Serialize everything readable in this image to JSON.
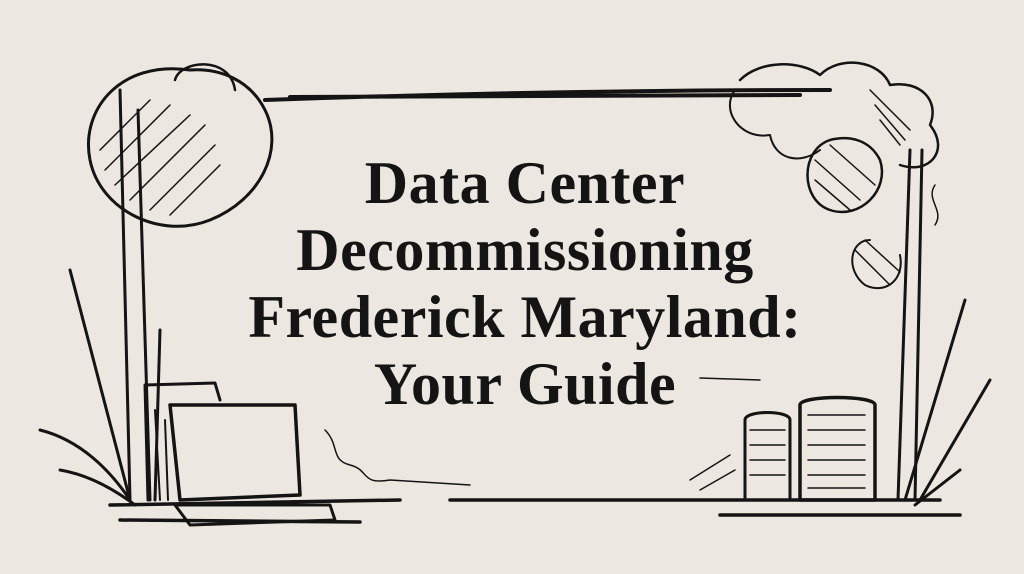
{
  "title": {
    "lines": [
      "Data Center",
      "Decommissioning",
      "Frederick Maryland:",
      "Your Guide"
    ]
  },
  "colors": {
    "background": "#ece7e1",
    "ink": "#141414"
  },
  "illustration": {
    "style": "hand-drawn ink sketch",
    "elements": [
      "sun-circle-icon",
      "cloud-icon",
      "laptop-icon",
      "server-stack-icon",
      "grass-icon"
    ]
  }
}
